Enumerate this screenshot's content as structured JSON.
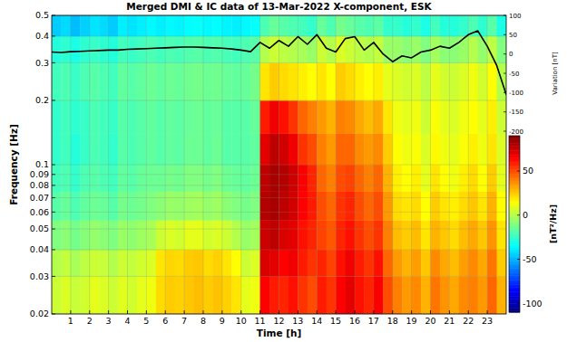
{
  "chart_data": {
    "type": "heatmap",
    "title": "Merged DMI & IC data of 13-Mar-2022  X-component, ESK",
    "x_label": "Time [h]",
    "y_label": "Frequency [Hz]",
    "y2_label": "Variation [nT]",
    "colorbar_label": "[nT²/Hz]",
    "log": "y",
    "grid": true,
    "xlim": [
      0,
      24
    ],
    "xticks": [
      1,
      2,
      3,
      4,
      5,
      6,
      7,
      8,
      9,
      10,
      11,
      12,
      13,
      14,
      15,
      16,
      17,
      18,
      19,
      20,
      21,
      22,
      23
    ],
    "ylim": [
      0.02,
      0.5
    ],
    "yticks": [
      0.02,
      0.03,
      0.04,
      0.05,
      0.06,
      0.07,
      0.08,
      0.09,
      0.1,
      0.2,
      0.3,
      0.4,
      0.5
    ],
    "y2lim": [
      -200,
      100
    ],
    "y2ticks": [
      100,
      50,
      0,
      -50,
      -100,
      -150,
      -200
    ],
    "clim": [
      -110,
      90
    ],
    "cticks": [
      -100,
      -50,
      0,
      50
    ],
    "xbins": [
      0,
      0.5,
      1,
      1.5,
      2,
      2.5,
      3,
      3.5,
      4,
      4.5,
      5,
      5.5,
      6,
      6.5,
      7,
      7.5,
      8,
      8.5,
      9,
      9.5,
      10,
      10.5,
      11,
      11.5,
      12,
      12.5,
      13,
      13.5,
      14,
      14.5,
      15,
      15.5,
      16,
      16.5,
      17,
      17.5,
      18,
      18.5,
      19,
      19.5,
      20,
      20.5,
      21,
      21.5,
      22,
      22.5,
      23,
      23.5,
      24
    ],
    "ybins": [
      0.02,
      0.03,
      0.04,
      0.055,
      0.075,
      0.1,
      0.14,
      0.2,
      0.3,
      0.4,
      0.5
    ],
    "cells": [
      [
        5,
        8,
        4,
        6,
        10,
        8,
        5,
        9,
        6,
        10,
        12,
        22,
        25,
        24,
        26,
        28,
        25,
        27,
        24,
        20,
        10,
        12,
        65,
        60,
        58,
        62,
        55,
        50,
        60,
        55,
        65,
        70,
        62,
        58,
        66,
        50,
        40,
        35,
        38,
        30,
        42,
        36,
        32,
        38,
        40,
        35,
        45,
        30
      ],
      [
        0,
        3,
        -2,
        2,
        5,
        4,
        0,
        5,
        3,
        6,
        8,
        20,
        23,
        22,
        25,
        26,
        22,
        24,
        20,
        15,
        5,
        8,
        72,
        70,
        65,
        68,
        60,
        55,
        58,
        52,
        62,
        68,
        60,
        55,
        62,
        45,
        35,
        30,
        34,
        26,
        38,
        32,
        28,
        34,
        38,
        32,
        42,
        25
      ],
      [
        -10,
        -8,
        -12,
        -9,
        -6,
        -8,
        -10,
        -5,
        -7,
        -4,
        -2,
        5,
        8,
        6,
        10,
        10,
        6,
        8,
        5,
        0,
        -5,
        -3,
        75,
        78,
        72,
        70,
        62,
        58,
        52,
        48,
        58,
        62,
        55,
        50,
        55,
        40,
        28,
        25,
        28,
        20,
        30,
        26,
        22,
        28,
        32,
        26,
        36,
        20
      ],
      [
        -18,
        -15,
        -20,
        -16,
        -14,
        -15,
        -18,
        -12,
        -14,
        -12,
        -10,
        -8,
        -5,
        -6,
        -4,
        -3,
        -6,
        -4,
        -8,
        -10,
        -12,
        -10,
        80,
        82,
        78,
        74,
        65,
        60,
        50,
        45,
        55,
        58,
        50,
        45,
        50,
        35,
        22,
        20,
        22,
        15,
        25,
        20,
        18,
        22,
        26,
        20,
        30,
        15
      ],
      [
        -22,
        -20,
        -25,
        -20,
        -18,
        -20,
        -22,
        -16,
        -18,
        -15,
        -14,
        -14,
        -12,
        -13,
        -10,
        -10,
        -12,
        -10,
        -14,
        -15,
        -16,
        -14,
        78,
        82,
        80,
        75,
        66,
        58,
        45,
        40,
        50,
        52,
        45,
        40,
        45,
        30,
        18,
        15,
        18,
        10,
        20,
        15,
        12,
        18,
        22,
        15,
        25,
        10
      ],
      [
        -25,
        -22,
        -28,
        -24,
        -20,
        -22,
        -25,
        -18,
        -20,
        -18,
        -16,
        -18,
        -16,
        -17,
        -14,
        -14,
        -16,
        -14,
        -18,
        -18,
        -18,
        -16,
        70,
        78,
        74,
        68,
        55,
        50,
        40,
        35,
        45,
        45,
        38,
        35,
        38,
        25,
        15,
        12,
        14,
        8,
        16,
        12,
        10,
        14,
        18,
        12,
        20,
        8
      ],
      [
        -25,
        -22,
        -26,
        -24,
        -20,
        -22,
        -24,
        -18,
        -20,
        -18,
        -16,
        -18,
        -16,
        -17,
        -15,
        -14,
        -16,
        -15,
        -18,
        -18,
        -18,
        -15,
        60,
        68,
        62,
        55,
        45,
        40,
        35,
        30,
        40,
        38,
        32,
        28,
        32,
        20,
        12,
        10,
        12,
        5,
        14,
        10,
        8,
        12,
        15,
        10,
        18,
        5
      ],
      [
        -22,
        -20,
        -24,
        -20,
        -18,
        -20,
        -22,
        -16,
        -18,
        -16,
        -14,
        -16,
        -14,
        -15,
        -13,
        -12,
        -14,
        -13,
        -15,
        -16,
        -15,
        -12,
        20,
        25,
        22,
        20,
        18,
        15,
        20,
        15,
        25,
        22,
        18,
        15,
        18,
        10,
        8,
        6,
        8,
        2,
        10,
        6,
        5,
        8,
        12,
        6,
        15,
        0
      ],
      [
        -28,
        -26,
        -30,
        -26,
        -24,
        -26,
        -28,
        -22,
        -24,
        -22,
        -20,
        -22,
        -20,
        -21,
        -19,
        -18,
        -20,
        -19,
        -21,
        -22,
        -20,
        -18,
        0,
        5,
        2,
        0,
        -2,
        -5,
        5,
        0,
        8,
        5,
        2,
        0,
        3,
        -5,
        -5,
        -8,
        -5,
        -10,
        -3,
        -8,
        -8,
        -5,
        0,
        -6,
        2,
        -10
      ],
      [
        -45,
        -42,
        -48,
        -44,
        -40,
        -42,
        -45,
        -38,
        -40,
        -38,
        -36,
        -38,
        -36,
        -37,
        -35,
        -34,
        -36,
        -35,
        -37,
        -38,
        -36,
        -34,
        -20,
        -15,
        -18,
        -20,
        -22,
        -25,
        -15,
        -20,
        -12,
        -15,
        -18,
        -20,
        -17,
        -25,
        -25,
        -28,
        -25,
        -30,
        -22,
        -28,
        -28,
        -25,
        -20,
        -26,
        -18,
        -30
      ]
    ],
    "series": [
      {
        "type": "line",
        "axis": "y2",
        "color": "#000000",
        "x": [
          0,
          0.5,
          1,
          1.5,
          2,
          2.5,
          3,
          3.5,
          4,
          4.5,
          5,
          5.5,
          6,
          6.5,
          7,
          7.5,
          8,
          8.5,
          9,
          9.5,
          10,
          10.5,
          11,
          11.5,
          12,
          12.5,
          13,
          13.5,
          14,
          14.5,
          15,
          15.5,
          16,
          16.5,
          17,
          17.5,
          18,
          18.5,
          19,
          19.5,
          20,
          20.5,
          21,
          21.5,
          22,
          22.5,
          23,
          23.5,
          24
        ],
        "values": [
          5,
          4,
          6,
          7,
          8,
          9,
          10,
          10,
          12,
          13,
          14,
          15,
          16,
          17,
          18,
          18,
          17,
          16,
          15,
          13,
          10,
          6,
          30,
          15,
          35,
          20,
          45,
          25,
          50,
          15,
          5,
          40,
          45,
          10,
          30,
          0,
          -20,
          -5,
          -10,
          5,
          10,
          20,
          15,
          30,
          50,
          60,
          20,
          -30,
          -105
        ]
      }
    ]
  }
}
